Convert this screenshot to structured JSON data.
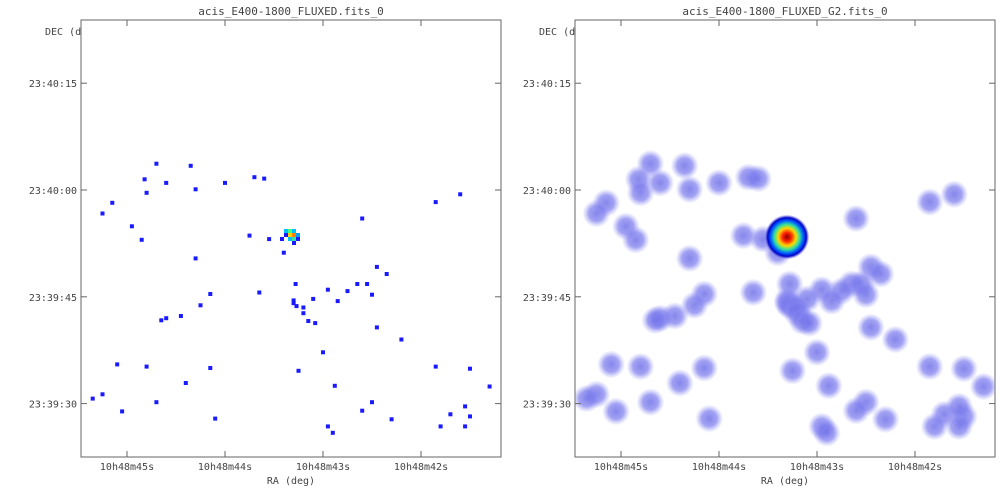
{
  "chart_data": [
    {
      "type": "scatter",
      "title": "acis_E400-1800_FLUXED.fits_0",
      "xlabel": "RA (deg)",
      "ylabel": "DEC (deg)",
      "x_ticks": [
        "10h48m45s",
        "10h48m44s",
        "10h48m43s",
        "10h48m42s"
      ],
      "y_ticks": [
        "23:40:15",
        "23:40:00",
        "23:39:45",
        "23:39:30"
      ],
      "x_range_sec": [
        45.4,
        41.4
      ],
      "y_range_sec": [
        1170,
        1192
      ],
      "grid": false,
      "render": "events",
      "point_color": "#1a1aff",
      "series": [
        {
          "points": [
            [
              44.7,
              1203.7
            ],
            [
              44.35,
              1203.4
            ],
            [
              44.82,
              1201.5
            ],
            [
              44.6,
              1201.0
            ],
            [
              44.0,
              1201.0
            ],
            [
              43.7,
              1201.8
            ],
            [
              43.6,
              1201.6
            ],
            [
              44.3,
              1200.1
            ],
            [
              44.8,
              1199.6
            ],
            [
              45.15,
              1198.2
            ],
            [
              41.85,
              1198.3
            ],
            [
              41.6,
              1199.4
            ],
            [
              45.25,
              1196.7
            ],
            [
              42.6,
              1196.0
            ],
            [
              44.95,
              1194.9
            ],
            [
              43.75,
              1193.6
            ],
            [
              43.55,
              1193.1
            ],
            [
              44.85,
              1193.0
            ],
            [
              43.4,
              1191.2
            ],
            [
              44.3,
              1190.4
            ],
            [
              42.45,
              1189.2
            ],
            [
              42.35,
              1188.2
            ],
            [
              42.65,
              1186.8
            ],
            [
              42.55,
              1186.8
            ],
            [
              43.28,
              1186.8
            ],
            [
              42.95,
              1186.0
            ],
            [
              42.75,
              1185.8
            ],
            [
              42.5,
              1185.3
            ],
            [
              43.65,
              1185.6
            ],
            [
              44.15,
              1185.4
            ],
            [
              43.1,
              1184.7
            ],
            [
              43.3,
              1184.5
            ],
            [
              42.85,
              1184.4
            ],
            [
              44.25,
              1183.8
            ],
            [
              43.3,
              1184.1
            ],
            [
              44.45,
              1182.3
            ],
            [
              44.6,
              1182.0
            ],
            [
              44.65,
              1181.7
            ],
            [
              43.27,
              1183.7
            ],
            [
              43.2,
              1183.5
            ],
            [
              43.2,
              1182.7
            ],
            [
              43.15,
              1181.6
            ],
            [
              43.08,
              1181.3
            ],
            [
              42.45,
              1180.7
            ],
            [
              42.2,
              1179.0
            ],
            [
              43.0,
              1177.2
            ],
            [
              45.1,
              1175.5
            ],
            [
              44.8,
              1175.2
            ],
            [
              44.15,
              1175.0
            ],
            [
              43.25,
              1174.6
            ],
            [
              42.88,
              1172.5
            ],
            [
              44.4,
              1172.9
            ],
            [
              45.25,
              1171.3
            ],
            [
              45.35,
              1170.7
            ],
            [
              44.7,
              1170.2
            ],
            [
              42.5,
              1170.2
            ],
            [
              42.3,
              1167.8
            ],
            [
              45.05,
              1168.9
            ],
            [
              42.6,
              1169.0
            ],
            [
              41.7,
              1168.5
            ],
            [
              41.5,
              1168.2
            ],
            [
              41.8,
              1166.8
            ],
            [
              41.55,
              1166.8
            ],
            [
              44.1,
              1167.9
            ],
            [
              42.95,
              1166.8
            ],
            [
              41.85,
              1175.2
            ],
            [
              41.5,
              1174.9
            ],
            [
              41.3,
              1172.4
            ],
            [
              42.9,
              1165.9
            ],
            [
              41.55,
              1169.6
            ]
          ],
          "source": {
            "ra_sec": 43.15,
            "dec_sec": 1184.2,
            "label": ""
          }
        }
      ]
    },
    {
      "type": "scatter",
      "title": "acis_E400-1800_FLUXED_G2.fits_0",
      "xlabel": "RA (deg)",
      "ylabel": "DEC (deg)",
      "x_ticks": [
        "10h48m45s",
        "10h48m44s",
        "10h48m43s",
        "10h48m42s"
      ],
      "y_ticks": [
        "23:40:15",
        "23:40:00",
        "23:39:45",
        "23:39:30"
      ],
      "x_range_sec": [
        45.4,
        41.4
      ],
      "y_range_sec": [
        1170,
        1192
      ],
      "grid": false,
      "render": "smoothed",
      "blob_color": "#7070e8",
      "series": [
        {
          "points": []
        }
      ]
    }
  ]
}
